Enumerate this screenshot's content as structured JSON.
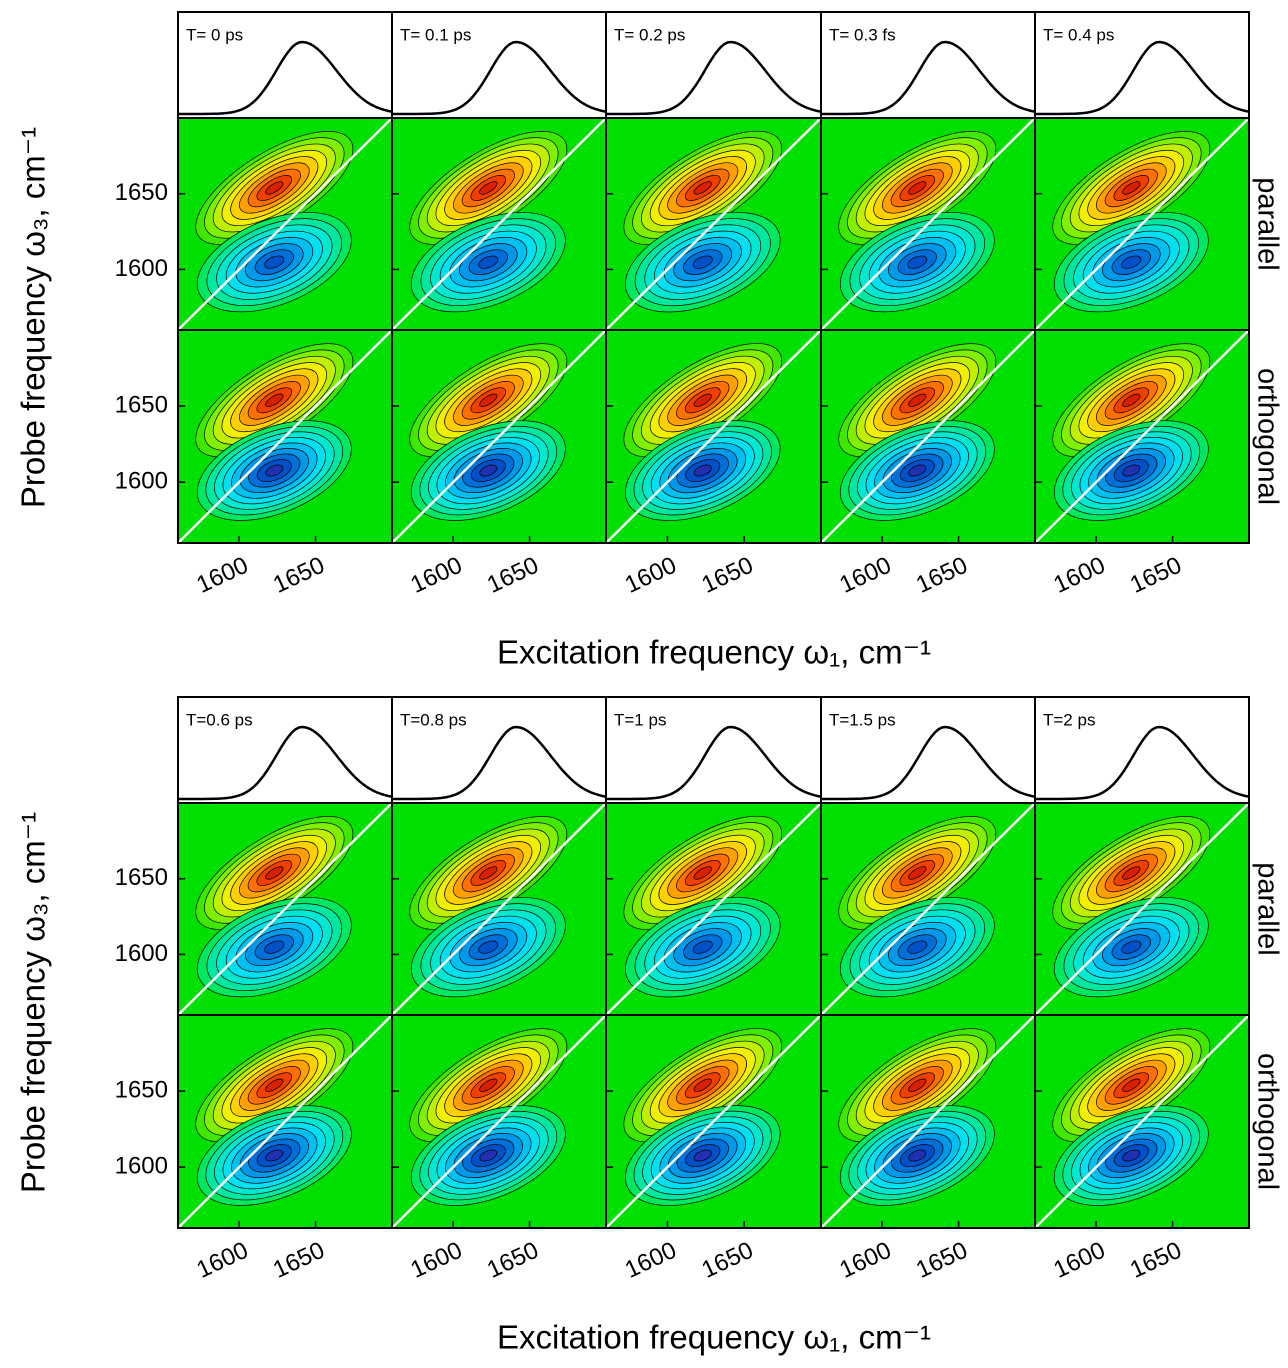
{
  "chart_data": [
    {
      "type": "contour",
      "panel_titles": [
        "T= 0 ps",
        "T= 0.1 ps",
        "T= 0.2 ps",
        "T= 0.3 fs",
        "T= 0.4 ps"
      ],
      "row_labels": [
        "parallel",
        "orthogonal"
      ],
      "xlabel": "Excitation frequency ω₁, cm⁻¹",
      "ylabel": "Probe frequency ω₃, cm⁻¹",
      "xlim": [
        1560,
        1700
      ],
      "ylim": [
        1560,
        1700
      ],
      "xticks": [
        1600,
        1650
      ],
      "yticks": [
        1600,
        1650
      ]
    },
    {
      "type": "contour",
      "panel_titles": [
        "T=0.6 ps",
        "T=0.8 ps",
        "T=1 ps",
        "T=1.5 ps",
        "T=2 ps"
      ],
      "row_labels": [
        "parallel",
        "orthogonal"
      ],
      "xlabel": "Excitation frequency ω₁, cm⁻¹",
      "ylabel": "Probe frequency ω₃, cm⁻¹",
      "xlim": [
        1560,
        1700
      ],
      "ylim": [
        1560,
        1700
      ],
      "xticks": [
        1600,
        1650
      ],
      "yticks": [
        1600,
        1650
      ]
    }
  ]
}
